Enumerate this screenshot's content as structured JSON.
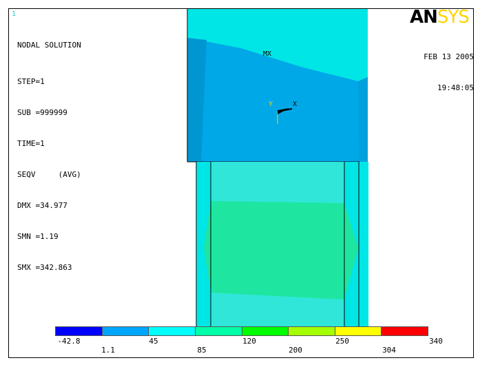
{
  "window": {
    "number": "1"
  },
  "logo": {
    "an": "AN",
    "sys": "SYS"
  },
  "info": {
    "title": "NODAL SOLUTION",
    "lines": [
      "STEP=1",
      "SUB =999999",
      "TIME=1",
      "SEQV     (AVG)",
      "DMX =34.977",
      "SMN =1.19",
      "SMX =342.863"
    ]
  },
  "datetime": {
    "date": "FEB 13 2005",
    "time": "19:48:05"
  },
  "markers": {
    "max": "MX",
    "axis_y": "Y",
    "axis_x": "X"
  },
  "legend": {
    "colors": [
      "#0000ff",
      "#00a6ff",
      "#00ffff",
      "#00ffa6",
      "#00ff00",
      "#a6ff00",
      "#ffff00",
      "#ff0000"
    ],
    "upper_ticks": [
      "-42.8",
      "45",
      "120",
      "250",
      "340"
    ],
    "lower_ticks": [
      "1.1",
      "85",
      "200",
      "304"
    ]
  },
  "model_colors": {
    "outer_cyan": "#00e6e6",
    "mid_blue": "#00a8e8",
    "light_cyan": "#30e6d8",
    "green_band": "#1ee6a0",
    "outline": "#000000"
  }
}
